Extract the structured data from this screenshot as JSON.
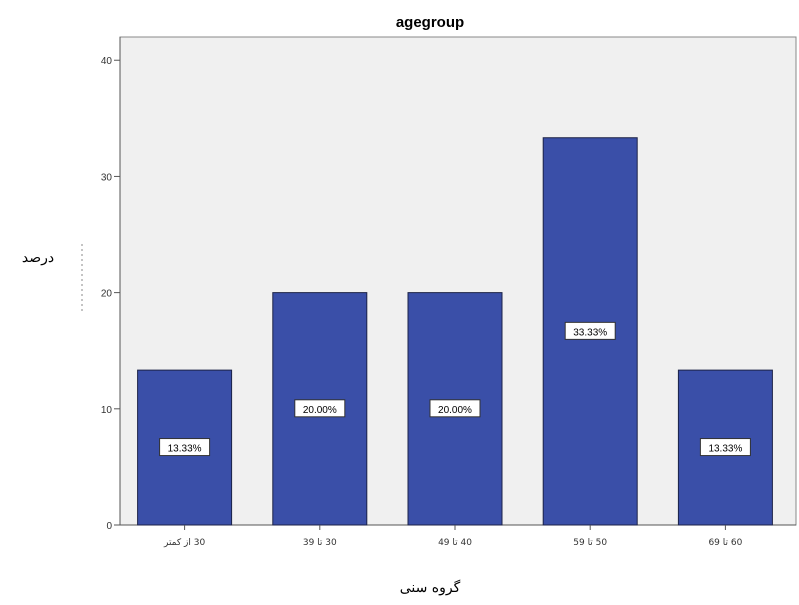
{
  "chart_data": {
    "type": "bar",
    "title": "agegroup",
    "xlabel": "گروه سنی",
    "ylabel": "درصد",
    "categories": [
      "30 از کمتر",
      "30 تا 39",
      "40 تا 49",
      "50 تا 59",
      "60 تا 69"
    ],
    "values": [
      13.33,
      20.0,
      20.0,
      33.33,
      13.33
    ],
    "data_labels": [
      "13.33%",
      "20.00%",
      "20.00%",
      "33.33%",
      "13.33%"
    ],
    "ylim": [
      0,
      42
    ],
    "yticks": [
      0,
      10,
      20,
      30,
      40
    ],
    "grid": false,
    "colors": {
      "bar_fill": "#3a4fa8",
      "bar_stroke": "#1c2247",
      "plot_background": "#f0f0f0"
    }
  }
}
